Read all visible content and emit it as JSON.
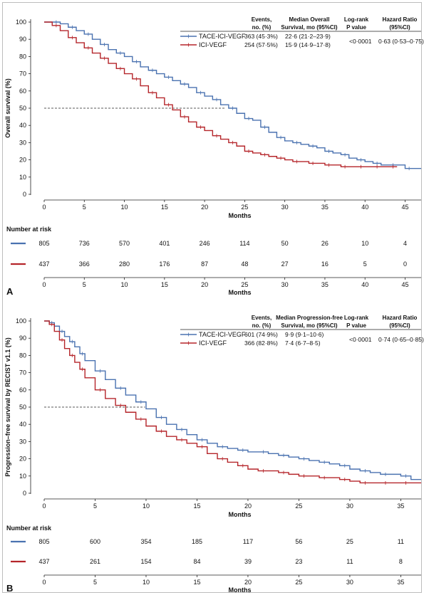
{
  "colors": {
    "tace": "#4a72b0",
    "ici": "#b5252a",
    "axis": "#222222",
    "median_line": "#222222"
  },
  "chart_data": [
    {
      "type": "line",
      "panel_label": "A",
      "ylabel": "Overall survival (%)",
      "xlabel": "Months",
      "xlim": [
        0,
        47
      ],
      "ylim": [
        0,
        100
      ],
      "x_ticks": [
        0,
        5,
        10,
        15,
        20,
        25,
        30,
        35,
        40,
        45
      ],
      "y_ticks": [
        0,
        10,
        20,
        30,
        40,
        50,
        60,
        70,
        80,
        90,
        100
      ],
      "median_reference": {
        "y": 50,
        "x_end": 22.6
      },
      "table_headers": {
        "events": [
          "Events,",
          "no. (%)"
        ],
        "median": [
          "Median Overall",
          "Survival, mo (95%CI)"
        ],
        "p": [
          "Log-rank",
          "P value"
        ],
        "hr": [
          "Hazard Ratio",
          "(95%CI)"
        ]
      },
      "p_value": "<0·0001",
      "hazard_ratio": "0·63 (0·53–0·75)",
      "series": [
        {
          "name": "TACE-ICI-VEGF",
          "color_key": "tace",
          "events": "363 (45·3%)",
          "median": "22·6 (21·2–23·9)",
          "x": [
            0,
            1,
            2,
            3,
            4,
            5,
            6,
            7,
            8,
            9,
            10,
            11,
            12,
            13,
            14,
            15,
            16,
            17,
            18,
            19,
            20,
            21,
            22,
            23,
            24,
            25,
            26,
            27,
            28,
            29,
            30,
            31,
            32,
            33,
            34,
            35,
            36,
            37,
            38,
            39,
            40,
            41,
            42,
            43,
            44,
            45,
            46,
            47
          ],
          "y": [
            100,
            100,
            99,
            97,
            95,
            93,
            90,
            87,
            84,
            82,
            80,
            77,
            74,
            72,
            70,
            68,
            66,
            64,
            62,
            59,
            57,
            55,
            52,
            50,
            47,
            44,
            43,
            39,
            36,
            33,
            31,
            30,
            29,
            28,
            27,
            25,
            24,
            23,
            21,
            20,
            19,
            18,
            17,
            17,
            17,
            15,
            15,
            15
          ]
        },
        {
          "name": "ICI-VEGF",
          "color_key": "ici",
          "events": "254 (57·5%)",
          "median": "15·9 (14·9–17·8)",
          "x": [
            0,
            1,
            2,
            3,
            4,
            5,
            6,
            7,
            8,
            9,
            10,
            11,
            12,
            13,
            14,
            15,
            16,
            17,
            18,
            19,
            20,
            21,
            22,
            23,
            24,
            25,
            26,
            27,
            28,
            29,
            30,
            31,
            32,
            33,
            34,
            35,
            36,
            37,
            38,
            39,
            40,
            41,
            42,
            43,
            44
          ],
          "y": [
            100,
            98,
            95,
            91,
            88,
            85,
            82,
            79,
            76,
            73,
            70,
            67,
            63,
            59,
            56,
            52,
            49,
            45,
            42,
            39,
            37,
            34,
            32,
            30,
            28,
            25,
            24,
            23,
            22,
            21,
            20,
            19,
            19,
            18,
            18,
            17,
            17,
            16,
            16,
            16,
            16,
            16,
            16,
            16,
            16
          ]
        }
      ],
      "risk_table": {
        "title": "Number at risk",
        "times": [
          0,
          5,
          10,
          15,
          20,
          25,
          30,
          35,
          40,
          45
        ],
        "rows": [
          {
            "color_key": "tace",
            "values": [
              "805",
              "736",
              "570",
              "401",
              "246",
              "114",
              "50",
              "26",
              "10",
              "4"
            ]
          },
          {
            "color_key": "ici",
            "values": [
              "437",
              "366",
              "280",
              "176",
              "87",
              "48",
              "27",
              "16",
              "5",
              "0"
            ]
          }
        ],
        "xlabel": "Months"
      }
    },
    {
      "type": "line",
      "panel_label": "B",
      "ylabel": "Progression–free survival by RECIST v1.1 (%)",
      "xlabel": "Months",
      "xlim": [
        0,
        37
      ],
      "ylim": [
        0,
        100
      ],
      "x_ticks": [
        0,
        5,
        10,
        15,
        20,
        25,
        30,
        35
      ],
      "y_ticks": [
        0,
        10,
        20,
        30,
        40,
        50,
        60,
        70,
        80,
        90,
        100
      ],
      "median_reference": {
        "y": 50,
        "x_end": 9.9
      },
      "table_headers": {
        "events": [
          "Events,",
          "no. (%)"
        ],
        "median": [
          "Median Progression-free",
          "Survival, mo (95%CI)"
        ],
        "p": [
          "Log-rank",
          "P value"
        ],
        "hr": [
          "Hazard Ratio",
          "(95%CI)"
        ]
      },
      "p_value": "<0·0001",
      "hazard_ratio": "0·74 (0·65–0·85)",
      "series": [
        {
          "name": "TACE-ICI-VEGF",
          "color_key": "tace",
          "events": "601 (74·9%)",
          "median": "9·9 (9·1–10·6)",
          "x": [
            0,
            0.5,
            1,
            1.5,
            2,
            2.5,
            3,
            3.5,
            4,
            5,
            6,
            7,
            8,
            9,
            10,
            11,
            12,
            13,
            14,
            15,
            16,
            17,
            18,
            19,
            20,
            21,
            22,
            23,
            24,
            25,
            26,
            27,
            28,
            29,
            30,
            31,
            32,
            33,
            34,
            35,
            36,
            37
          ],
          "y": [
            100,
            99,
            97,
            94,
            91,
            88,
            85,
            81,
            77,
            71,
            66,
            61,
            57,
            53,
            49,
            44,
            40,
            37,
            34,
            31,
            29,
            27,
            26,
            25,
            24,
            24,
            23,
            22,
            21,
            20,
            19,
            18,
            17,
            16,
            14,
            13,
            12,
            11,
            11,
            10,
            8,
            8
          ]
        },
        {
          "name": "ICI-VEGF",
          "color_key": "ici",
          "events": "366 (82·8%)",
          "median": "7·4 (6·7–8·5)",
          "x": [
            0,
            0.5,
            1,
            1.5,
            2,
            2.5,
            3,
            3.5,
            4,
            5,
            6,
            7,
            8,
            9,
            10,
            11,
            12,
            13,
            14,
            15,
            16,
            17,
            18,
            19,
            20,
            21,
            22,
            23,
            24,
            25,
            26,
            27,
            28,
            29,
            30,
            31,
            32,
            33,
            34,
            35,
            36,
            37
          ],
          "y": [
            100,
            98,
            94,
            89,
            84,
            80,
            76,
            72,
            67,
            60,
            55,
            51,
            47,
            43,
            39,
            36,
            33,
            31,
            29,
            27,
            23,
            20,
            18,
            16,
            14,
            13,
            13,
            12,
            11,
            10,
            10,
            9,
            9,
            8,
            7,
            6,
            6,
            6,
            6,
            6,
            6,
            6
          ]
        }
      ],
      "risk_table": {
        "title": "Number at risk",
        "times": [
          0,
          5,
          10,
          15,
          20,
          25,
          30,
          35
        ],
        "rows": [
          {
            "color_key": "tace",
            "values": [
              "805",
              "600",
              "354",
              "185",
              "117",
              "56",
              "25",
              "11"
            ]
          },
          {
            "color_key": "ici",
            "values": [
              "437",
              "261",
              "154",
              "84",
              "39",
              "23",
              "11",
              "8"
            ]
          }
        ],
        "xlabel": "Months"
      }
    }
  ]
}
